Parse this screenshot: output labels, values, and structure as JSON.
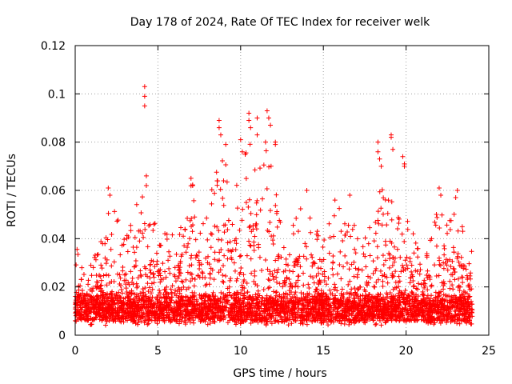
{
  "chart_data": {
    "type": "scatter",
    "title": "Day 178 of 2024, Rate Of TEC Index for receiver welk",
    "xlabel": "GPS time / hours",
    "ylabel": "ROTI / TECUs",
    "xlim": [
      0,
      25
    ],
    "ylim": [
      0,
      0.12
    ],
    "xticks": [
      0,
      5,
      10,
      15,
      20,
      25
    ],
    "xtick_labels": [
      "0",
      "5",
      "10",
      "15",
      "20",
      "25"
    ],
    "yticks": [
      0,
      0.02,
      0.04,
      0.06,
      0.08,
      0.1,
      0.12
    ],
    "ytick_labels": [
      "0",
      "0.02",
      "0.04",
      "0.06",
      "0.08",
      "0.1",
      "0.12"
    ],
    "grid": true,
    "marker": "+",
    "series_color": "#ff0000",
    "data_range_x": [
      0,
      24
    ],
    "baseline_band": [
      0.006,
      0.016
    ],
    "envelope": [
      {
        "x": 0.0,
        "y": 0.03
      },
      {
        "x": 0.2,
        "y": 0.04
      },
      {
        "x": 0.5,
        "y": 0.025
      },
      {
        "x": 1.0,
        "y": 0.03
      },
      {
        "x": 1.5,
        "y": 0.038
      },
      {
        "x": 2.0,
        "y": 0.06
      },
      {
        "x": 2.5,
        "y": 0.05
      },
      {
        "x": 3.0,
        "y": 0.04
      },
      {
        "x": 3.5,
        "y": 0.048
      },
      {
        "x": 4.0,
        "y": 0.07
      },
      {
        "x": 4.5,
        "y": 0.05
      },
      {
        "x": 5.0,
        "y": 0.045
      },
      {
        "x": 5.5,
        "y": 0.048
      },
      {
        "x": 6.0,
        "y": 0.052
      },
      {
        "x": 6.5,
        "y": 0.045
      },
      {
        "x": 7.0,
        "y": 0.066
      },
      {
        "x": 7.5,
        "y": 0.05
      },
      {
        "x": 8.0,
        "y": 0.052
      },
      {
        "x": 8.5,
        "y": 0.07
      },
      {
        "x": 9.0,
        "y": 0.078
      },
      {
        "x": 9.5,
        "y": 0.055
      },
      {
        "x": 10.0,
        "y": 0.075
      },
      {
        "x": 10.5,
        "y": 0.085
      },
      {
        "x": 11.0,
        "y": 0.072
      },
      {
        "x": 11.5,
        "y": 0.082
      },
      {
        "x": 12.0,
        "y": 0.065
      },
      {
        "x": 12.5,
        "y": 0.045
      },
      {
        "x": 13.0,
        "y": 0.048
      },
      {
        "x": 13.5,
        "y": 0.052
      },
      {
        "x": 14.0,
        "y": 0.058
      },
      {
        "x": 14.5,
        "y": 0.045
      },
      {
        "x": 15.0,
        "y": 0.04
      },
      {
        "x": 15.5,
        "y": 0.052
      },
      {
        "x": 16.0,
        "y": 0.055
      },
      {
        "x": 16.5,
        "y": 0.05
      },
      {
        "x": 17.0,
        "y": 0.045
      },
      {
        "x": 17.5,
        "y": 0.04
      },
      {
        "x": 18.0,
        "y": 0.05
      },
      {
        "x": 18.5,
        "y": 0.065
      },
      {
        "x": 19.0,
        "y": 0.07
      },
      {
        "x": 19.5,
        "y": 0.048
      },
      {
        "x": 20.0,
        "y": 0.06
      },
      {
        "x": 20.5,
        "y": 0.04
      },
      {
        "x": 21.0,
        "y": 0.032
      },
      {
        "x": 21.5,
        "y": 0.04
      },
      {
        "x": 22.0,
        "y": 0.055
      },
      {
        "x": 22.5,
        "y": 0.045
      },
      {
        "x": 23.0,
        "y": 0.058
      },
      {
        "x": 23.5,
        "y": 0.045
      },
      {
        "x": 24.0,
        "y": 0.035
      }
    ],
    "outliers": [
      {
        "x": 4.2,
        "y": 0.103
      },
      {
        "x": 4.2,
        "y": 0.099
      },
      {
        "x": 4.2,
        "y": 0.095
      },
      {
        "x": 8.7,
        "y": 0.089
      },
      {
        "x": 8.7,
        "y": 0.086
      },
      {
        "x": 8.8,
        "y": 0.083
      },
      {
        "x": 9.1,
        "y": 0.079
      },
      {
        "x": 10.0,
        "y": 0.081
      },
      {
        "x": 10.1,
        "y": 0.076
      },
      {
        "x": 10.5,
        "y": 0.092
      },
      {
        "x": 10.5,
        "y": 0.089
      },
      {
        "x": 10.6,
        "y": 0.086
      },
      {
        "x": 11.0,
        "y": 0.09
      },
      {
        "x": 11.0,
        "y": 0.083
      },
      {
        "x": 11.6,
        "y": 0.093
      },
      {
        "x": 11.7,
        "y": 0.09
      },
      {
        "x": 11.8,
        "y": 0.087
      },
      {
        "x": 12.1,
        "y": 0.08
      },
      {
        "x": 12.1,
        "y": 0.079
      },
      {
        "x": 18.3,
        "y": 0.08
      },
      {
        "x": 18.3,
        "y": 0.076
      },
      {
        "x": 18.4,
        "y": 0.073
      },
      {
        "x": 18.5,
        "y": 0.07
      },
      {
        "x": 19.1,
        "y": 0.083
      },
      {
        "x": 19.1,
        "y": 0.082
      },
      {
        "x": 19.2,
        "y": 0.077
      },
      {
        "x": 19.8,
        "y": 0.074
      },
      {
        "x": 19.9,
        "y": 0.071
      },
      {
        "x": 19.9,
        "y": 0.07
      },
      {
        "x": 2.0,
        "y": 0.061
      },
      {
        "x": 2.1,
        "y": 0.058
      },
      {
        "x": 4.3,
        "y": 0.066
      },
      {
        "x": 4.3,
        "y": 0.062
      },
      {
        "x": 7.0,
        "y": 0.065
      },
      {
        "x": 7.1,
        "y": 0.062
      },
      {
        "x": 22.0,
        "y": 0.061
      },
      {
        "x": 22.1,
        "y": 0.058
      },
      {
        "x": 23.1,
        "y": 0.06
      },
      {
        "x": 23.0,
        "y": 0.057
      },
      {
        "x": 14.0,
        "y": 0.06
      },
      {
        "x": 15.7,
        "y": 0.056
      },
      {
        "x": 16.6,
        "y": 0.058
      }
    ]
  }
}
